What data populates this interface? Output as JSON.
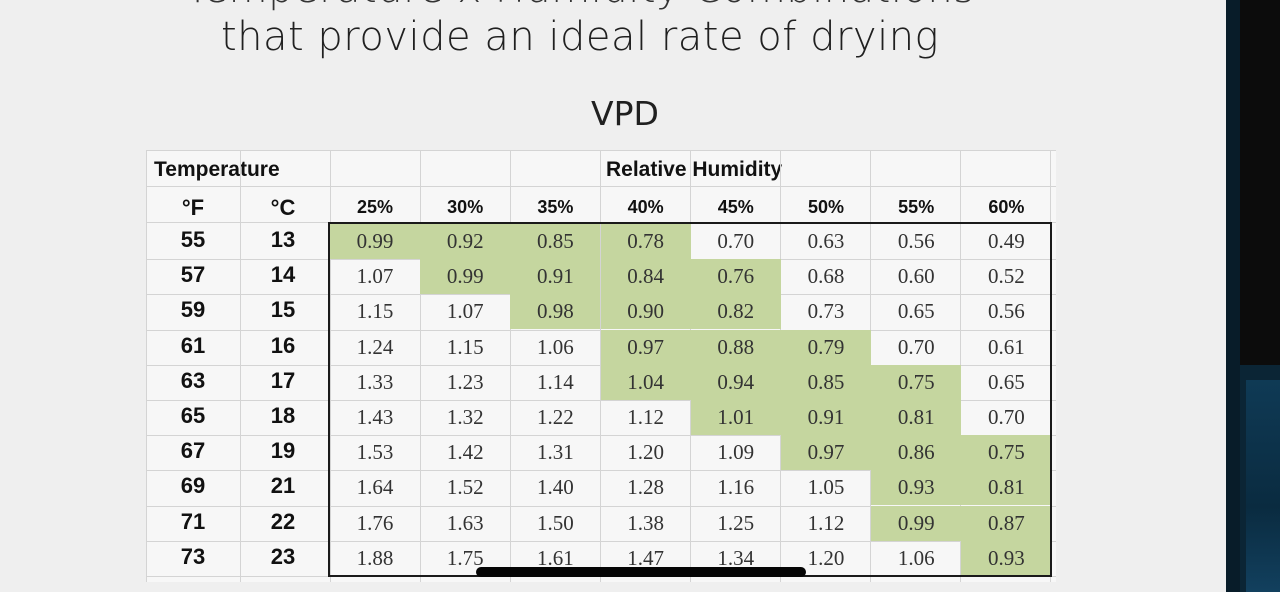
{
  "slide": {
    "title_cut": "Temperature x Humidity Combinations",
    "title_main": "that provide an ideal rate of drying",
    "subtitle": "VPD"
  },
  "table": {
    "header_temperature": "Temperature",
    "header_rh": "Relative Humidity",
    "unit_f": "°F",
    "unit_c": "°C",
    "humidity_columns": [
      "25%",
      "30%",
      "35%",
      "40%",
      "45%",
      "50%",
      "55%",
      "60%"
    ],
    "rows": [
      {
        "f": "55",
        "c": "13",
        "values": [
          "0.99",
          "0.92",
          "0.85",
          "0.78",
          "0.70",
          "0.63",
          "0.56",
          "0.49"
        ],
        "green": [
          0,
          1,
          2,
          3
        ]
      },
      {
        "f": "57",
        "c": "14",
        "values": [
          "1.07",
          "0.99",
          "0.91",
          "0.84",
          "0.76",
          "0.68",
          "0.60",
          "0.52"
        ],
        "green": [
          1,
          2,
          3,
          4
        ]
      },
      {
        "f": "59",
        "c": "15",
        "values": [
          "1.15",
          "1.07",
          "0.98",
          "0.90",
          "0.82",
          "0.73",
          "0.65",
          "0.56"
        ],
        "green": [
          2,
          3,
          4
        ]
      },
      {
        "f": "61",
        "c": "16",
        "values": [
          "1.24",
          "1.15",
          "1.06",
          "0.97",
          "0.88",
          "0.79",
          "0.70",
          "0.61"
        ],
        "green": [
          3,
          4,
          5
        ]
      },
      {
        "f": "63",
        "c": "17",
        "values": [
          "1.33",
          "1.23",
          "1.14",
          "1.04",
          "0.94",
          "0.85",
          "0.75",
          "0.65"
        ],
        "green": [
          3,
          4,
          5,
          6
        ]
      },
      {
        "f": "65",
        "c": "18",
        "values": [
          "1.43",
          "1.32",
          "1.22",
          "1.12",
          "1.01",
          "0.91",
          "0.81",
          "0.70"
        ],
        "green": [
          4,
          5,
          6
        ]
      },
      {
        "f": "67",
        "c": "19",
        "values": [
          "1.53",
          "1.42",
          "1.31",
          "1.20",
          "1.09",
          "0.97",
          "0.86",
          "0.75"
        ],
        "green": [
          5,
          6,
          7
        ]
      },
      {
        "f": "69",
        "c": "21",
        "values": [
          "1.64",
          "1.52",
          "1.40",
          "1.28",
          "1.16",
          "1.05",
          "0.93",
          "0.81"
        ],
        "green": [
          6,
          7
        ]
      },
      {
        "f": "71",
        "c": "22",
        "values": [
          "1.76",
          "1.63",
          "1.50",
          "1.38",
          "1.25",
          "1.12",
          "0.99",
          "0.87"
        ],
        "green": [
          6,
          7
        ]
      },
      {
        "f": "73",
        "c": "23",
        "values": [
          "1.88",
          "1.75",
          "1.61",
          "1.47",
          "1.34",
          "1.20",
          "1.06",
          "0.93"
        ],
        "green": [
          7
        ]
      }
    ],
    "highlight_color": "#c5d69f"
  }
}
